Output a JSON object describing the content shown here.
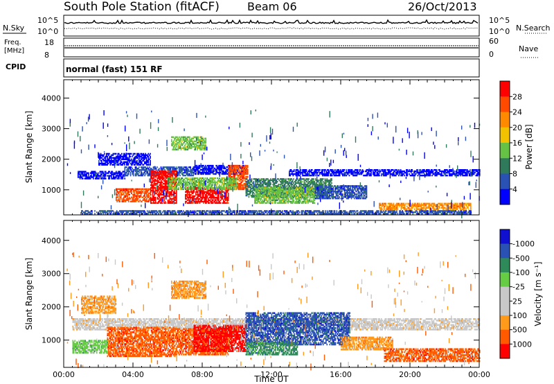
{
  "header": {
    "station": "South Pole Station (fitACF)",
    "beam": "Beam 06",
    "date": "26/Oct/2013"
  },
  "aux_panels": {
    "nsky_label": "N.Sky",
    "nsearch_label": "N.Search",
    "noise_ticks": [
      "10^5",
      "10^0"
    ],
    "freq_label_1": "Freq.",
    "freq_label_2": "[MHz]",
    "freq_ticks": [
      "18",
      "8"
    ],
    "nave_label": "Nave",
    "nave_ticks": [
      "60",
      "0"
    ],
    "cpid_label": "CPID",
    "cpid_text": "normal (fast) 151 RF"
  },
  "colors": {
    "power": [
      "#0000ff",
      "#2a52b4",
      "#2f7a5a",
      "#66c244",
      "#f2c200",
      "#ff8a00",
      "#ff4a00",
      "#ff0000"
    ],
    "velocity": [
      "#ff0000",
      "#ff5a00",
      "#ff9a1a",
      "#c8c8c8",
      "#c8c8c8",
      "#66cc44",
      "#2f8a5a",
      "#2a52b4",
      "#1010d0"
    ],
    "dots": "#000000"
  },
  "chart_data": [
    {
      "type": "heatmap",
      "name": "power",
      "ylabel": "Slant Range [km]",
      "xlabel": "Time UT",
      "ylim": [
        180,
        4600
      ],
      "yticks": [
        "1000",
        "2000",
        "3000",
        "4000"
      ],
      "xticks": [
        "00:00",
        "04:00",
        "08:00",
        "12:00",
        "16:00",
        "20:00",
        "00:00"
      ],
      "colorbar_label": "Power [dB]",
      "colorbar_ticks": [
        "4",
        "8",
        "12",
        "16",
        "20",
        "24",
        "28"
      ],
      "regions": [
        {
          "t0": 0.8,
          "t1": 3.5,
          "r0": 1350,
          "r1": 1600,
          "level": 0
        },
        {
          "t0": 3.5,
          "t1": 7.5,
          "r0": 1450,
          "r1": 1750,
          "level": 1
        },
        {
          "t0": 7.5,
          "t1": 10.5,
          "r0": 1500,
          "r1": 1800,
          "level": 0
        },
        {
          "t0": 13.0,
          "t1": 24.0,
          "r0": 1450,
          "r1": 1650,
          "level": 0
        },
        {
          "t0": 3.0,
          "t1": 5.0,
          "r0": 600,
          "r1": 1050,
          "level": 6
        },
        {
          "t0": 5.0,
          "t1": 6.5,
          "r0": 550,
          "r1": 1600,
          "level": 7
        },
        {
          "t0": 7.0,
          "t1": 9.5,
          "r0": 550,
          "r1": 1050,
          "level": 7
        },
        {
          "t0": 9.5,
          "t1": 10.6,
          "r0": 1000,
          "r1": 1800,
          "level": 6
        },
        {
          "t0": 6.0,
          "t1": 10.0,
          "r0": 1000,
          "r1": 1400,
          "level": 3
        },
        {
          "t0": 10.5,
          "t1": 15.5,
          "r0": 750,
          "r1": 1350,
          "level": 2
        },
        {
          "t0": 11.0,
          "t1": 14.5,
          "r0": 550,
          "r1": 1050,
          "level": 3
        },
        {
          "t0": 14.5,
          "t1": 17.5,
          "r0": 700,
          "r1": 1150,
          "level": 1
        },
        {
          "t0": 18.2,
          "t1": 23.5,
          "r0": 350,
          "r1": 550,
          "level": 5
        },
        {
          "t0": 6.2,
          "t1": 8.2,
          "r0": 2300,
          "r1": 2750,
          "level": 3
        },
        {
          "t0": 1.0,
          "t1": 23.5,
          "r0": 200,
          "r1": 330,
          "level": 1
        },
        {
          "t0": 2.0,
          "t1": 5.0,
          "r0": 1800,
          "r1": 2200,
          "level": 0
        }
      ]
    },
    {
      "type": "heatmap",
      "name": "velocity",
      "ylabel": "Slant Range [km]",
      "xlabel": "Time UT",
      "ylim": [
        180,
        4600
      ],
      "yticks": [
        "1000",
        "2000",
        "3000",
        "4000"
      ],
      "xticks": [
        "00:00",
        "04:00",
        "08:00",
        "12:00",
        "16:00",
        "20:00",
        "00:00"
      ],
      "colorbar_label": "Velocity [m s⁻¹]",
      "colorbar_ticks": [
        "1000",
        "500",
        "100",
        "25",
        "-25",
        "-100",
        "-500",
        "-1000"
      ],
      "regions": [
        {
          "t0": 0.5,
          "t1": 24.0,
          "r0": 1300,
          "r1": 1650,
          "level": 3
        },
        {
          "t0": 2.5,
          "t1": 6.5,
          "r0": 500,
          "r1": 1400,
          "level": 1
        },
        {
          "t0": 6.5,
          "t1": 9.5,
          "r0": 550,
          "r1": 1350,
          "level": 1
        },
        {
          "t0": 7.5,
          "t1": 10.5,
          "r0": 650,
          "r1": 1450,
          "level": 0
        },
        {
          "t0": 10.5,
          "t1": 16.5,
          "r0": 850,
          "r1": 1800,
          "level": 7
        },
        {
          "t0": 10.5,
          "t1": 13.5,
          "r0": 550,
          "r1": 950,
          "level": 6
        },
        {
          "t0": 16.0,
          "t1": 19.0,
          "r0": 700,
          "r1": 1100,
          "level": 2
        },
        {
          "t0": 18.5,
          "t1": 24.0,
          "r0": 350,
          "r1": 750,
          "level": 1
        },
        {
          "t0": 6.2,
          "t1": 8.2,
          "r0": 2250,
          "r1": 2750,
          "level": 2
        },
        {
          "t0": 1.0,
          "t1": 3.0,
          "r0": 1800,
          "r1": 2300,
          "level": 2
        },
        {
          "t0": 0.5,
          "t1": 2.5,
          "r0": 600,
          "r1": 1000,
          "level": 5
        }
      ]
    }
  ]
}
